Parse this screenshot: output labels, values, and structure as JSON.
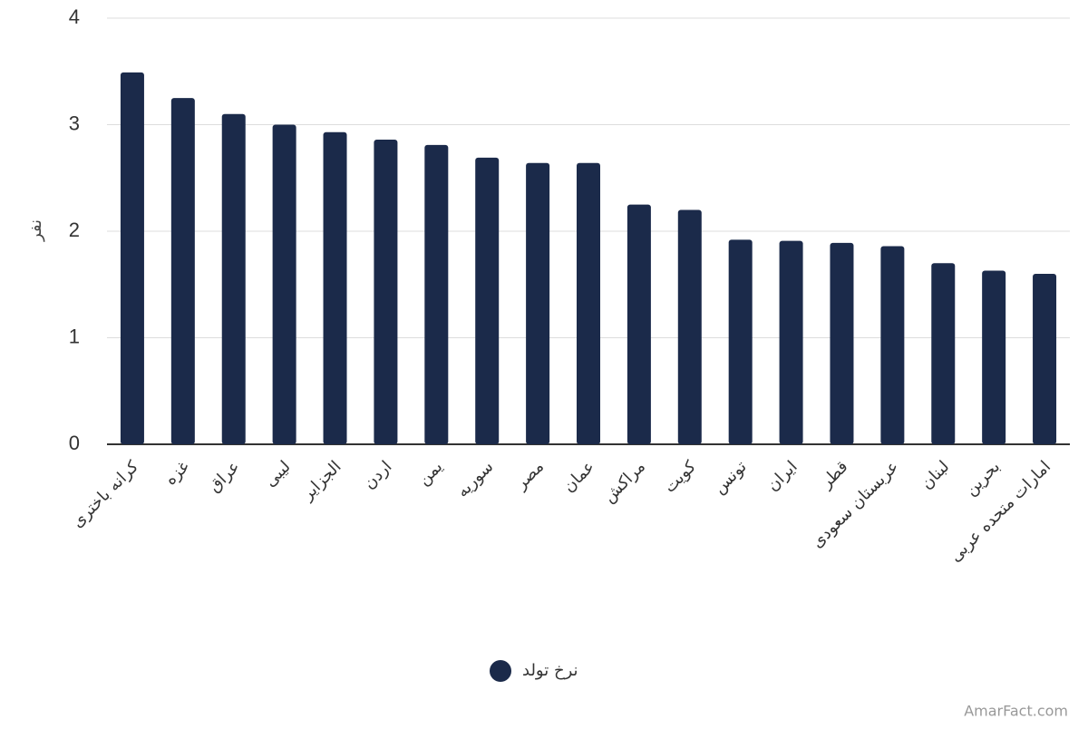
{
  "chart_data": {
    "type": "bar",
    "y_label": "نفر",
    "categories": [
      "کرانه باختری",
      "غزه",
      "عراق",
      "لیبی",
      "الجزایر",
      "اردن",
      "یمن",
      "سوریه",
      "مصر",
      "عمان",
      "مراکش",
      "کویت",
      "تونس",
      "ایران",
      "قطر",
      "عربستان سعودی",
      "لبنان",
      "بحرین",
      "امارات متحده عربی"
    ],
    "series": [
      {
        "name": "نرخ تولد",
        "color": "#1b2a4a",
        "values": [
          3.49,
          3.25,
          3.1,
          3.0,
          2.93,
          2.86,
          2.81,
          2.69,
          2.64,
          2.64,
          2.25,
          2.2,
          1.92,
          1.91,
          1.89,
          1.86,
          1.7,
          1.63,
          1.6
        ]
      }
    ],
    "ylim": [
      0,
      4
    ],
    "yticks": [
      0,
      1,
      2,
      3,
      4
    ],
    "grid": true,
    "watermark": "AmarFact.com"
  }
}
